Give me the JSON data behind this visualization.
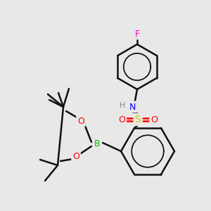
{
  "bg_color": "#e8e8e8",
  "atom_colors": {
    "F": "#ff00cc",
    "N": "#0000ff",
    "H": "#888888",
    "S": "#cccc00",
    "O": "#ff0000",
    "B": "#00bb00",
    "C": "#111111"
  },
  "bond_color": "#111111",
  "bond_width": 1.8
}
